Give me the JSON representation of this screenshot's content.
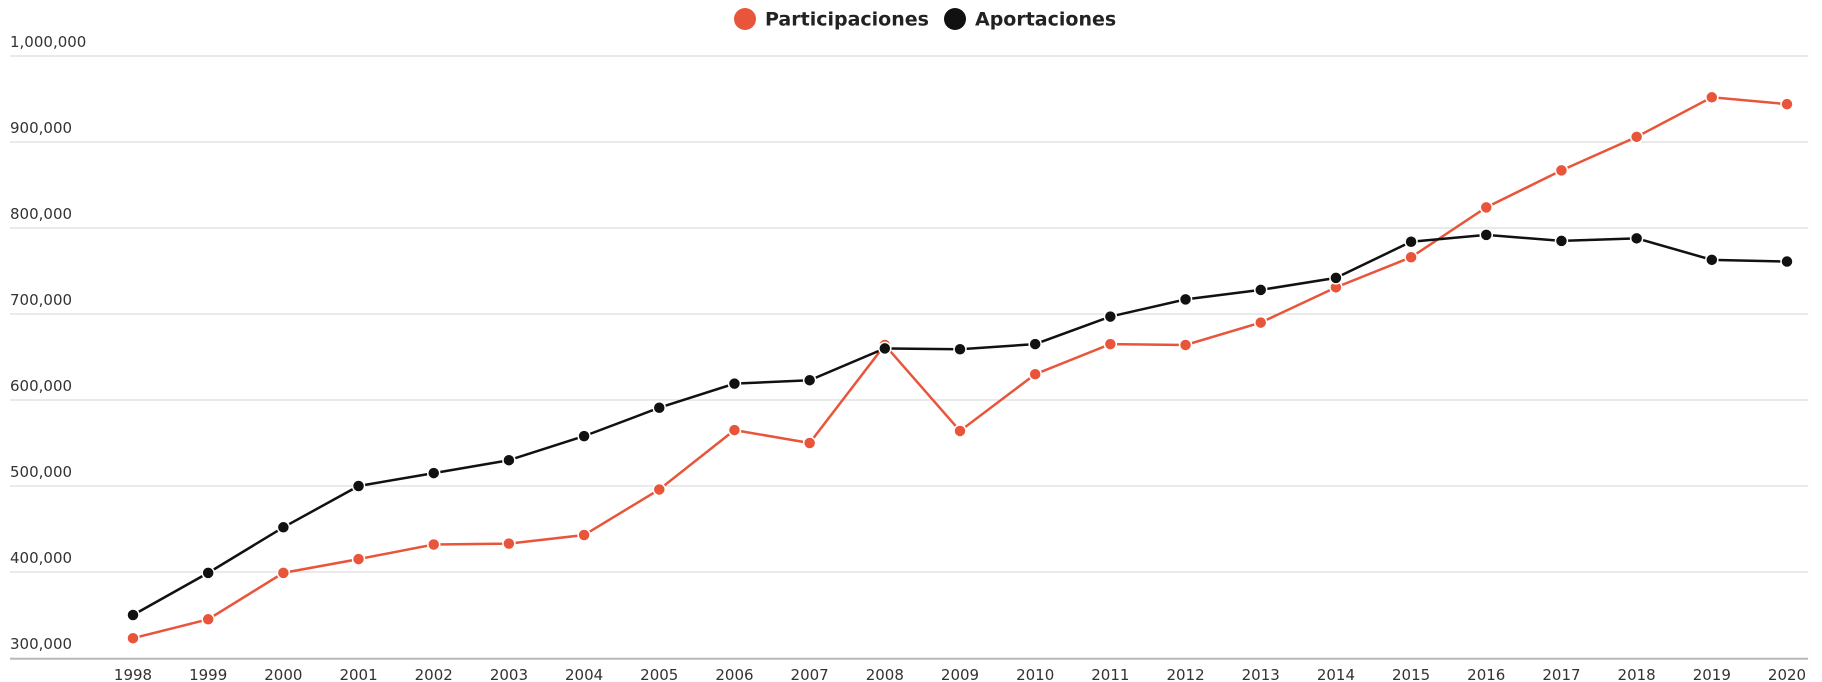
{
  "chart_data": {
    "type": "line",
    "categories": [
      "1998",
      "1999",
      "2000",
      "2001",
      "2002",
      "2003",
      "2004",
      "2005",
      "2006",
      "2007",
      "2008",
      "2009",
      "2010",
      "2011",
      "2012",
      "2013",
      "2014",
      "2015",
      "2016",
      "2017",
      "2018",
      "2019",
      "2020"
    ],
    "series": [
      {
        "name": "Participaciones",
        "color": "#e8553a",
        "values": [
          323000,
          345000,
          399000,
          415000,
          432000,
          433000,
          443000,
          496000,
          565000,
          550000,
          664000,
          564000,
          630000,
          665000,
          664000,
          690000,
          731000,
          766000,
          824000,
          867000,
          906000,
          952000,
          944000
        ]
      },
      {
        "name": "Aportaciones",
        "color": "#111111",
        "values": [
          350000,
          399000,
          452000,
          500000,
          515000,
          530000,
          558000,
          591000,
          619000,
          623000,
          660000,
          659000,
          665000,
          697000,
          717000,
          728000,
          742000,
          784000,
          792000,
          785000,
          788000,
          763000,
          761000
        ]
      }
    ],
    "ylim": [
      300000,
      1000000
    ],
    "yticks": [
      {
        "value": 300000,
        "label": "300,000"
      },
      {
        "value": 400000,
        "label": "400,000"
      },
      {
        "value": 500000,
        "label": "500,000"
      },
      {
        "value": 600000,
        "label": "600,000"
      },
      {
        "value": 700000,
        "label": "700,000"
      },
      {
        "value": 800000,
        "label": "800,000"
      },
      {
        "value": 900000,
        "label": "900,000"
      },
      {
        "value": 1000000,
        "label": "1,000,000"
      }
    ],
    "grid": true,
    "legend": "top"
  }
}
